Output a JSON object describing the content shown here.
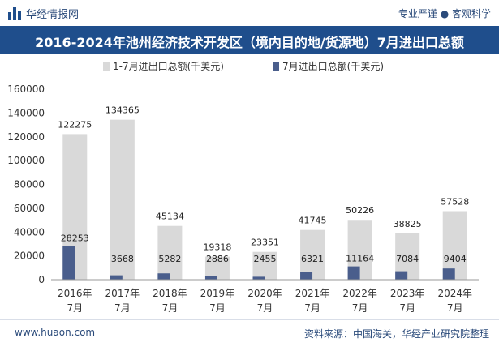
{
  "header": {
    "brand": "华经情报网",
    "tagline": "专业严谨 ● 客观科学"
  },
  "footer": {
    "url": "www.huaon.com",
    "source": "资料来源：中国海关，华经产业研究院整理"
  },
  "colors": {
    "title_bg": "#1f4e8c",
    "series1": "#d9d9d9",
    "series2": "#4a5e8c"
  },
  "chart_data": {
    "type": "bar",
    "title": "2016-2024年池州经济技术开发区（境内目的地/货源地）7月进出口总额",
    "categories": [
      [
        "2016年",
        "7月"
      ],
      [
        "2017年",
        "7月"
      ],
      [
        "2018年",
        "7月"
      ],
      [
        "2019年",
        "7月"
      ],
      [
        "2020年",
        "7月"
      ],
      [
        "2021年",
        "7月"
      ],
      [
        "2022年",
        "7月"
      ],
      [
        "2023年",
        "7月"
      ],
      [
        "2024年",
        "7月"
      ]
    ],
    "series": [
      {
        "name": "1-7月进出口总额(千美元)",
        "values": [
          122275,
          134365,
          45134,
          19318,
          23351,
          41745,
          50226,
          38825,
          57528
        ]
      },
      {
        "name": "7月进出口总额(千美元)",
        "values": [
          28253,
          3668,
          5282,
          2886,
          2455,
          6321,
          11164,
          7084,
          9404
        ]
      }
    ],
    "ylim": [
      0,
      160000
    ],
    "yticks": [
      0,
      20000,
      40000,
      60000,
      80000,
      100000,
      120000,
      140000,
      160000
    ],
    "legend_position": "top-left",
    "grid": false
  }
}
